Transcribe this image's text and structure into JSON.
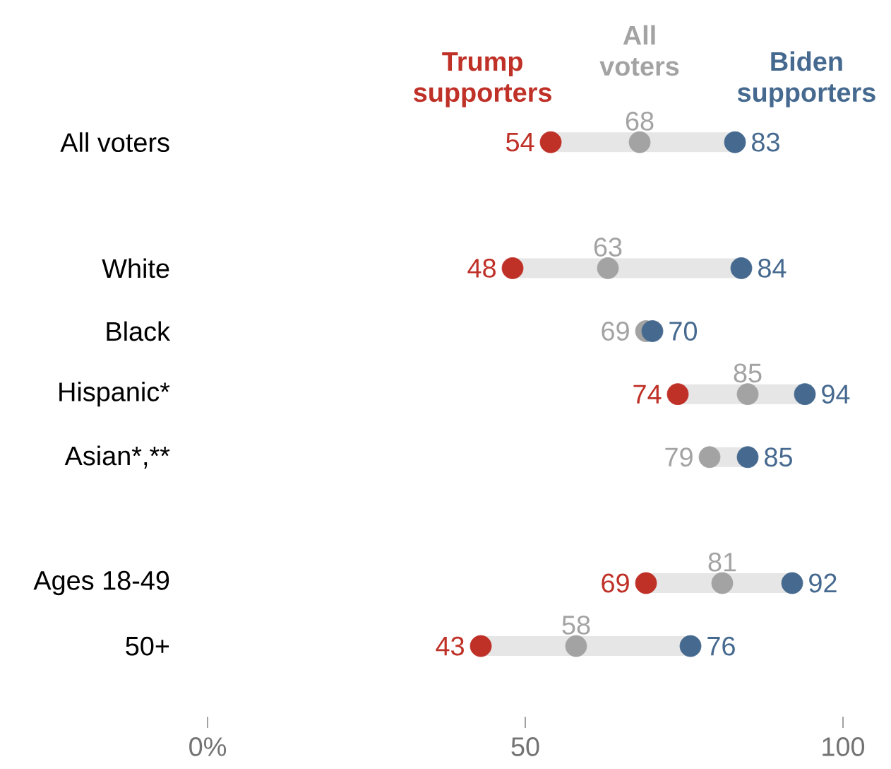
{
  "chart_data": {
    "type": "scatter",
    "orientation": "horizontal",
    "categories": [
      "All voters",
      null,
      "White",
      "Black",
      "Hispanic*",
      "Asian*,**",
      null,
      "Ages 18-49",
      "50+"
    ],
    "series": [
      {
        "name": "Trump supporters",
        "color": "#bf3027",
        "values": [
          54,
          null,
          48,
          null,
          74,
          null,
          null,
          69,
          43
        ]
      },
      {
        "name": "All voters",
        "color": "#a3a3a3",
        "values": [
          68,
          null,
          63,
          69,
          85,
          79,
          null,
          81,
          58
        ]
      },
      {
        "name": "Biden supporters",
        "color": "#46698f",
        "values": [
          83,
          null,
          84,
          70,
          94,
          85,
          null,
          92,
          76
        ]
      }
    ],
    "xlim": [
      0,
      100
    ],
    "xticks": [
      {
        "value": 0,
        "label": "0%"
      },
      50,
      100
    ],
    "marker": "circle",
    "legend": "top",
    "data_labels": true
  }
}
